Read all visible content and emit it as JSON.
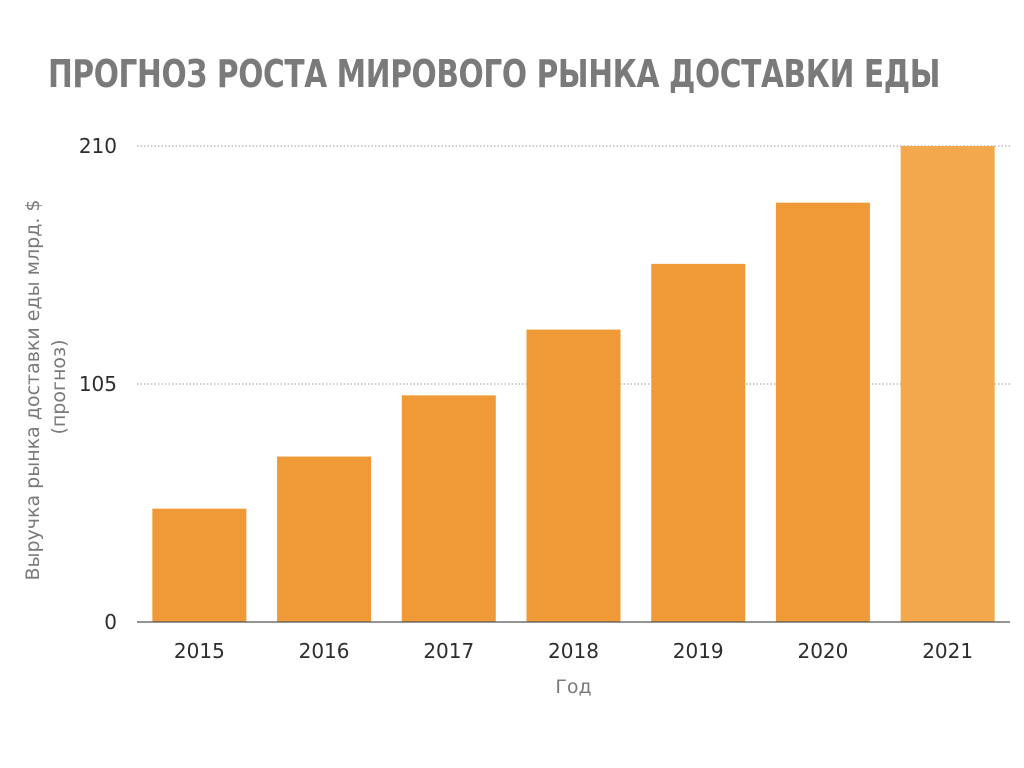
{
  "title": "ПРОГНОЗ РОСТА МИРОВОГО РЫНКА ДОСТАВКИ ЕДЫ",
  "chart_data": {
    "type": "bar",
    "categories": [
      "2015",
      "2016",
      "2017",
      "2018",
      "2019",
      "2020",
      "2021"
    ],
    "values": [
      50,
      73,
      100,
      129,
      158,
      185,
      210
    ],
    "xlabel": "Год",
    "ylabel_lines": [
      "Выручка рынка доставки еды млрд. $",
      "(прогноз)"
    ],
    "ylim": [
      0,
      210
    ],
    "yticks": [
      "0",
      "105",
      "210"
    ],
    "grid": true,
    "colors": {
      "bar": "#ef9a36",
      "bar_last": "#f2a84b",
      "grid": "#9a9a9a",
      "axis": "#555555"
    }
  }
}
